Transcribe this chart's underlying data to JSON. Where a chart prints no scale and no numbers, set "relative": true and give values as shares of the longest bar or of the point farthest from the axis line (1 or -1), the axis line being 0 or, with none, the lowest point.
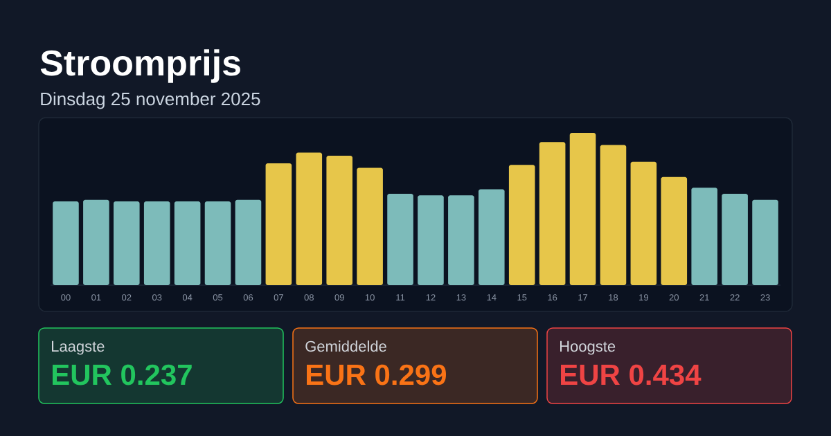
{
  "chart_data": [
    {
      "type": "bar",
      "title": "Stroomprijs",
      "subtitle": "Dinsdag 25 november 2025",
      "relative": true,
      "categories": [
        "00",
        "01",
        "02",
        "03",
        "04",
        "05",
        "06",
        "07",
        "08",
        "09",
        "10",
        "11",
        "12",
        "13",
        "14",
        "15",
        "16",
        "17",
        "18",
        "19",
        "20",
        "21",
        "22",
        "23"
      ],
      "values": [
        0.55,
        0.56,
        0.55,
        0.55,
        0.55,
        0.55,
        0.56,
        0.8,
        0.87,
        0.85,
        0.77,
        0.6,
        0.59,
        0.59,
        0.63,
        0.79,
        0.94,
        1,
        0.92,
        0.81,
        0.71,
        0.64,
        0.6,
        0.56
      ],
      "colors": [
        "#7dbbba",
        "#7dbbba",
        "#7dbbba",
        "#7dbbba",
        "#7dbbba",
        "#7dbbba",
        "#7dbbba",
        "#e7c64a",
        "#e7c64a",
        "#e7c64a",
        "#e7c64a",
        "#7dbbba",
        "#7dbbba",
        "#7dbbba",
        "#7dbbba",
        "#e7c64a",
        "#e7c64a",
        "#e7c64a",
        "#e7c64a",
        "#e7c64a",
        "#e7c64a",
        "#7dbbba",
        "#7dbbba",
        "#7dbbba"
      ]
    },
    {
      "type": "other",
      "title": "Laagste",
      "annotations": [
        "EUR 0.237"
      ],
      "color": "#22c55e"
    },
    {
      "type": "other",
      "title": "Gemiddelde",
      "annotations": [
        "EUR 0.299"
      ],
      "color": "#f97316"
    },
    {
      "type": "other",
      "title": "Hoogste",
      "annotations": [
        "EUR 0.434"
      ],
      "color": "#ef4444"
    }
  ]
}
